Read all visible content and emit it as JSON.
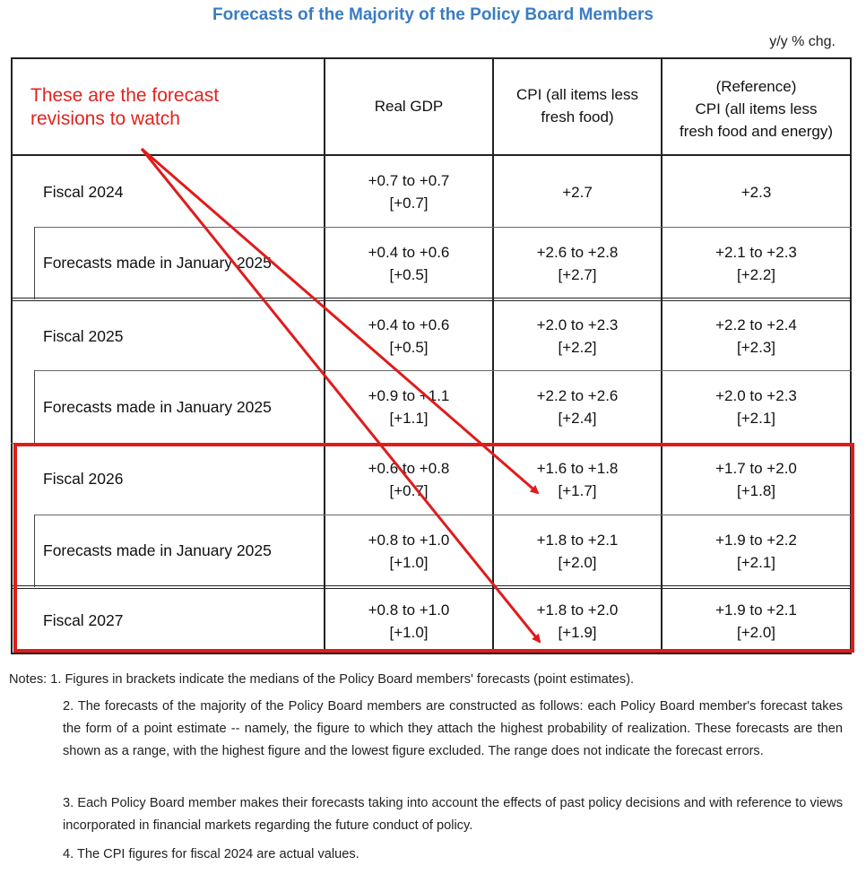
{
  "title": "Forecasts of the Majority of the Policy Board Members",
  "unit": "y/y % chg.",
  "annotation": {
    "line1": "These are the forecast",
    "line2": "revisions to watch",
    "color": "#e1231f"
  },
  "columns": {
    "gdp": "Real GDP",
    "cpi_line1": "CPI (all items less",
    "cpi_line2": "fresh food)",
    "ref_line1": "(Reference)",
    "ref_line2": "CPI (all items less",
    "ref_line3": "fresh food and energy)"
  },
  "rows": [
    {
      "label": "Fiscal 2024",
      "gdp_range": "+0.7 to +0.7",
      "gdp_median": "[+0.7]",
      "cpi_range": "+2.7",
      "cpi_median": "",
      "ref_range": "+2.3",
      "ref_median": ""
    },
    {
      "label": "Forecasts made in January 2025",
      "gdp_range": "+0.4 to +0.6",
      "gdp_median": "[+0.5]",
      "cpi_range": "+2.6 to +2.8",
      "cpi_median": "[+2.7]",
      "ref_range": "+2.1 to +2.3",
      "ref_median": "[+2.2]"
    },
    {
      "label": "Fiscal 2025",
      "gdp_range": "+0.4 to +0.6",
      "gdp_median": "[+0.5]",
      "cpi_range": "+2.0 to +2.3",
      "cpi_median": "[+2.2]",
      "ref_range": "+2.2 to +2.4",
      "ref_median": "[+2.3]"
    },
    {
      "label": "Forecasts made in January 2025",
      "gdp_range": "+0.9 to +1.1",
      "gdp_median": "[+1.1]",
      "cpi_range": "+2.2 to +2.6",
      "cpi_median": "[+2.4]",
      "ref_range": "+2.0 to +2.3",
      "ref_median": "[+2.1]"
    },
    {
      "label": "Fiscal 2026",
      "gdp_range": "+0.6 to +0.8",
      "gdp_median": "[+0.7]",
      "cpi_range": "+1.6 to +1.8",
      "cpi_median": "[+1.7]",
      "ref_range": "+1.7 to +2.0",
      "ref_median": "[+1.8]"
    },
    {
      "label": "Forecasts made in January 2025",
      "gdp_range": "+0.8 to +1.0",
      "gdp_median": "[+1.0]",
      "cpi_range": "+1.8 to +2.1",
      "cpi_median": "[+2.0]",
      "ref_range": "+1.9 to +2.2",
      "ref_median": "[+2.1]"
    },
    {
      "label": "Fiscal 2027",
      "gdp_range": "+0.8 to +1.0",
      "gdp_median": "[+1.0]",
      "cpi_range": "+1.8 to +2.0",
      "cpi_median": "[+1.9]",
      "ref_range": "+1.9 to +2.1",
      "ref_median": "[+2.0]"
    }
  ],
  "notes": {
    "n1": "Notes: 1. Figures in brackets indicate the medians of the Policy Board members' forecasts (point estimates).",
    "n2": "2. The forecasts of the majority of the Policy Board members are constructed as follows: each Policy Board member's forecast takes the form of a point estimate -- namely, the figure to which they attach the highest probability of realization. These forecasts are then shown as a range, with the highest figure and the lowest figure excluded. The range does not indicate the forecast errors.",
    "n3": "3. Each Policy Board member makes their forecasts taking into account the effects of past policy decisions and with reference to views incorporated in financial markets regarding the future conduct of policy.",
    "n4": "4. The CPI figures for fiscal 2024 are actual values."
  },
  "colors": {
    "title": "#3a7cc3",
    "highlight_box": "#e01b1b",
    "arrows": "#e01b1b"
  }
}
